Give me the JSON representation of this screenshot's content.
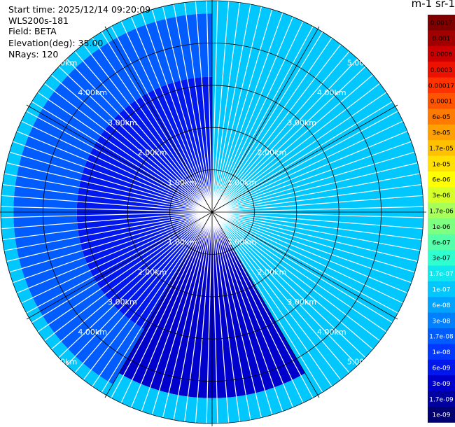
{
  "info": {
    "start_time": "Start time: 2025/12/14 09:20:09",
    "instrument": "WLS200s-181",
    "field": "Field: BETA",
    "elevation": "Elevation(deg): 35.00",
    "nrays": "NRays: 120"
  },
  "chart_data": {
    "type": "heatmap",
    "projection": "polar-ppi",
    "title": "",
    "range_km_max": 5.0,
    "range_rings_km": [
      1,
      2,
      3,
      4,
      5
    ],
    "range_labels": [
      "1.00km",
      "2.00km",
      "3.00km",
      "4.00km",
      "5.00km"
    ],
    "range_label_bearings_deg": [
      45,
      135,
      225,
      315
    ],
    "azimuth_lines_deg": [
      0,
      30,
      60,
      90,
      120,
      150,
      180,
      210,
      240,
      270,
      300,
      330
    ],
    "n_rays": 120,
    "colorbar": {
      "title": "m-1 sr-1",
      "labels": [
        "0.0017",
        "0.001",
        "0.0006",
        "0.0003",
        "0.00017",
        "0.0001",
        "6e-05",
        "3e-05",
        "1.7e-05",
        "1e-05",
        "6e-06",
        "3e-06",
        "1.7e-06",
        "1e-06",
        "6e-07",
        "3e-07",
        "1.7e-07",
        "1e-07",
        "6e-08",
        "3e-08",
        "1.7e-08",
        "1e-08",
        "6e-09",
        "3e-09",
        "1.7e-09",
        "1e-09"
      ],
      "colors": [
        "#800000",
        "#a00000",
        "#cc0000",
        "#ee1100",
        "#ff3300",
        "#ff5500",
        "#ff7a00",
        "#ff9f00",
        "#ffc000",
        "#ffe000",
        "#ffff00",
        "#d6ff29",
        "#a8ff58",
        "#7dff80",
        "#55ffaa",
        "#30ffd0",
        "#10e8ee",
        "#00c8ff",
        "#00a4ff",
        "#0080ff",
        "#005cff",
        "#0038ff",
        "#0018ee",
        "#0000cc",
        "#00009e",
        "#000070"
      ]
    },
    "sectors": [
      {
        "az_start_deg": 0,
        "az_end_deg": 150,
        "range_km": [
          0,
          5
        ],
        "log10_beta": -7.0,
        "label": "1e-07"
      },
      {
        "az_start_deg": 150,
        "az_end_deg": 210,
        "range_km": [
          0,
          4.4
        ],
        "log10_beta": -8.5,
        "label": "3e-09"
      },
      {
        "az_start_deg": 150,
        "az_end_deg": 210,
        "range_km": [
          4.4,
          5
        ],
        "log10_beta": -7.0,
        "label": "1e-07"
      },
      {
        "az_start_deg": 210,
        "az_end_deg": 360,
        "range_km": [
          0,
          3.2
        ],
        "log10_beta": -8.3,
        "label": "6e-09"
      },
      {
        "az_start_deg": 210,
        "az_end_deg": 360,
        "range_km": [
          3.2,
          4.7
        ],
        "log10_beta": -7.7,
        "label": "3e-08"
      },
      {
        "az_start_deg": 210,
        "az_end_deg": 360,
        "range_km": [
          4.7,
          5
        ],
        "log10_beta": -7.0,
        "label": "1e-07"
      }
    ]
  }
}
